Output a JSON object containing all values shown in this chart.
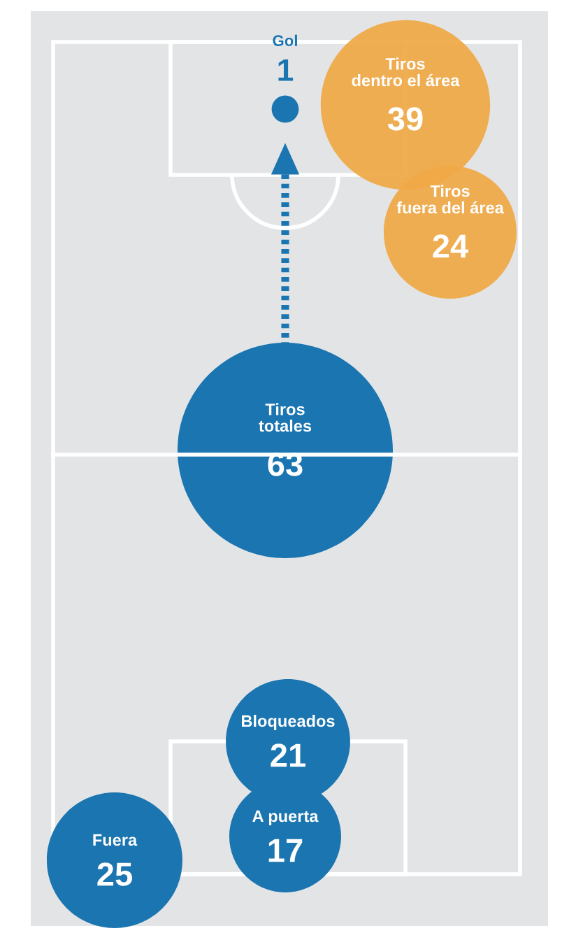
{
  "chart_data": {
    "type": "other",
    "categories": [
      "Gol",
      "Tiros\ndentro el área",
      "Tiros\nfuera del área",
      "Tiros\ntotales",
      "Bloqueados",
      "A puerta",
      "Fuera"
    ],
    "values": [
      1,
      39,
      24,
      63,
      21,
      17,
      25
    ],
    "colors": [
      "#1a75b0",
      "#f0a845",
      "#f0a845",
      "#1a75b0",
      "#1a75b0",
      "#1a75b0",
      "#1a75b0"
    ],
    "data_labels": true
  }
}
